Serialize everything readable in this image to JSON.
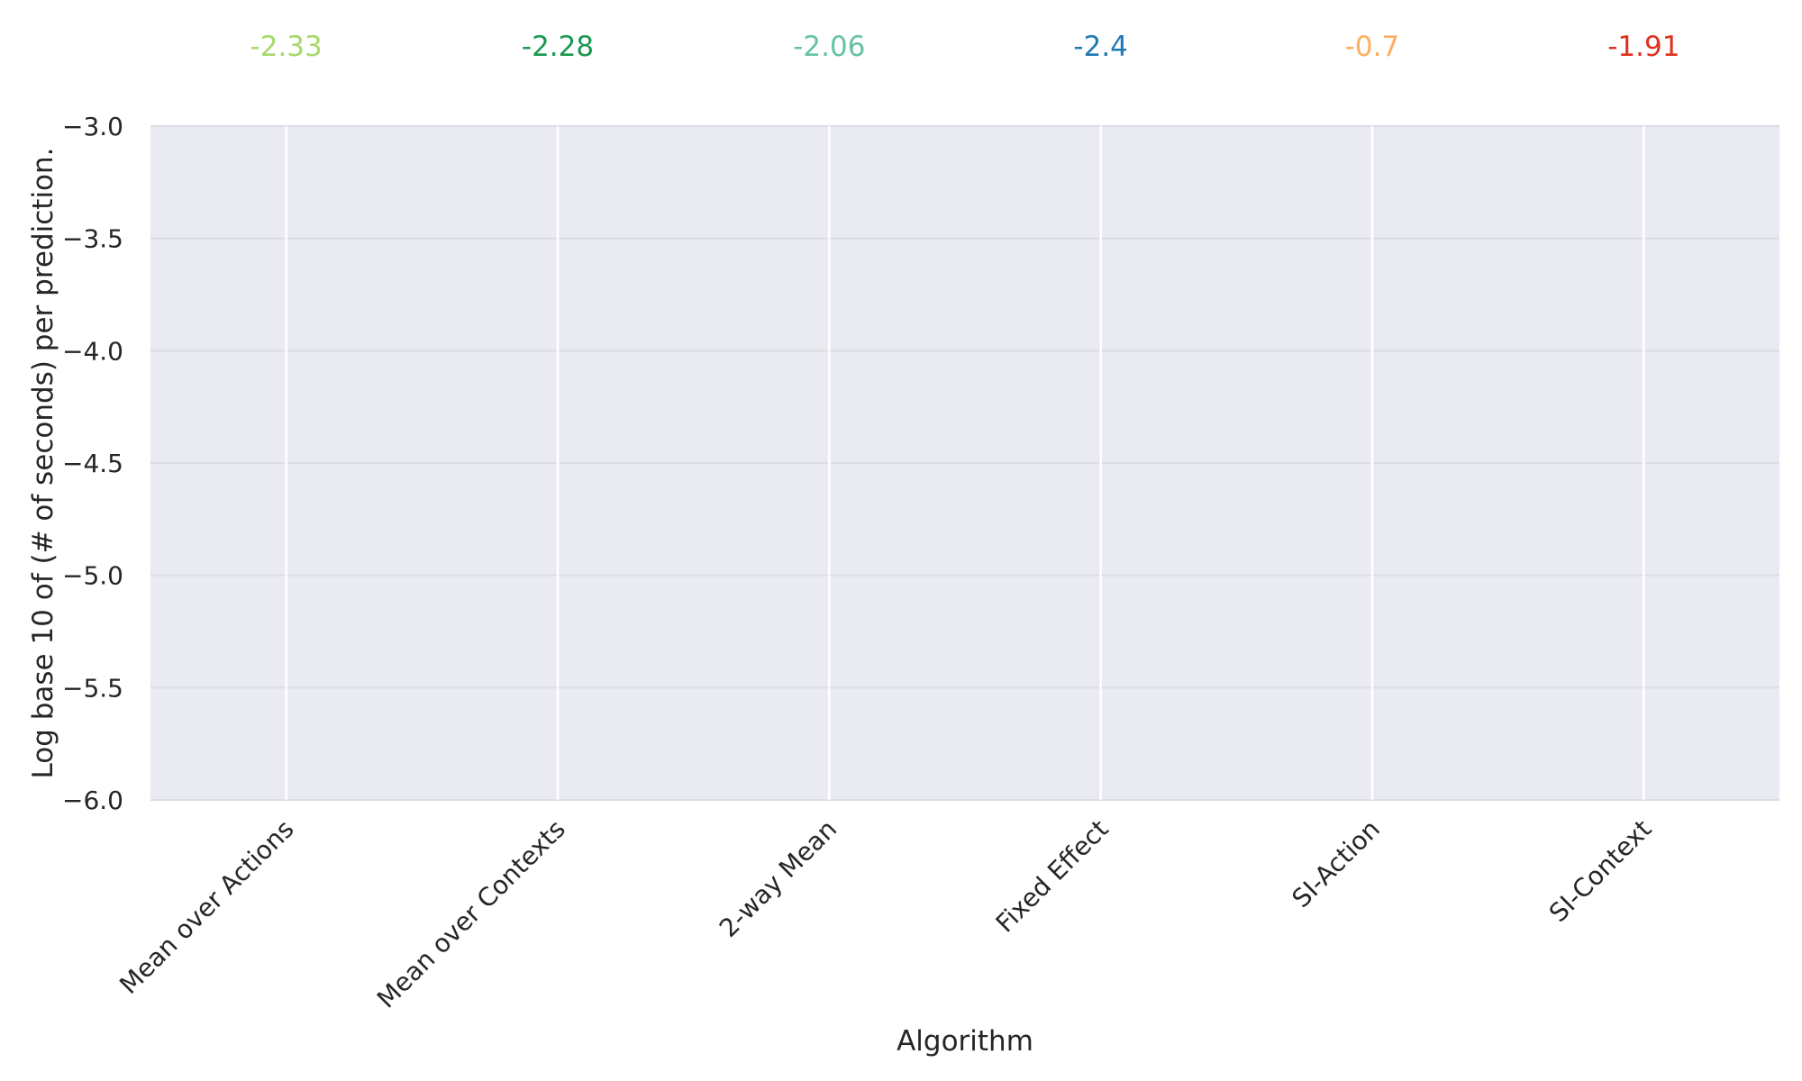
{
  "chart_data": {
    "type": "bar",
    "categories": [
      "Mean over Actions",
      "Mean over Contexts",
      "2-way Mean",
      "Fixed Effect",
      "SI-Action",
      "SI-Context"
    ],
    "values": [
      -2.33,
      -2.28,
      -2.06,
      -2.4,
      -0.7,
      -1.91
    ],
    "value_labels": [
      "-2.33",
      "-2.28",
      "-2.06",
      "-2.4",
      "-0.7",
      "-1.91"
    ],
    "colors": [
      "#a6d96a",
      "#1a9850",
      "#66c2a5",
      "#1f78b4",
      "#fdae61",
      "#e0301e"
    ],
    "xlabel": "Algorithm",
    "ylabel": "Log base 10 of (# of seconds) per prediction.",
    "ylim": [
      -6.0,
      -3.0
    ],
    "yticks": [
      -3.0,
      -3.5,
      -4.0,
      -4.5,
      -5.0,
      -5.5,
      -6.0
    ],
    "ytick_labels": [
      "−3.0",
      "−3.5",
      "−4.0",
      "−4.5",
      "−5.0",
      "−5.5",
      "−6.0"
    ],
    "grid": true,
    "background_color": "#eaeaf2",
    "grid_color": "#ffffff"
  }
}
